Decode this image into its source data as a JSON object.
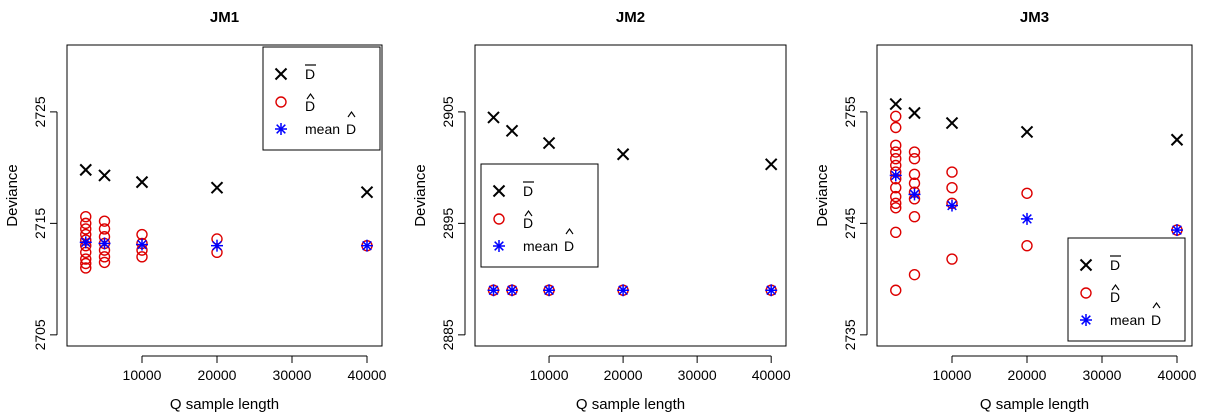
{
  "colors": {
    "dbar": "#000000",
    "dhat": "#DD0000",
    "mean_dhat": "#0000FF"
  },
  "legend": {
    "dbar": "D",
    "dhat": "D",
    "mean_dhat_prefix": "mean ",
    "mean_dhat_symbol": "D"
  },
  "chart_data": [
    {
      "type": "scatter",
      "title": "JM1",
      "xlabel": "Q sample length",
      "ylabel": "Deviance",
      "xlim": [
        0,
        42000
      ],
      "ylim": [
        2704,
        2731
      ],
      "xticks": [
        10000,
        20000,
        30000,
        40000
      ],
      "yticks": [
        2705,
        2715,
        2725
      ],
      "legend_position": "top-right",
      "grid": false,
      "series": [
        {
          "key": "dbar",
          "marker": "x",
          "points": [
            [
              2500,
              2719.8
            ],
            [
              5000,
              2719.3
            ],
            [
              10000,
              2718.7
            ],
            [
              20000,
              2718.2
            ],
            [
              40000,
              2717.8
            ]
          ]
        },
        {
          "key": "dhat",
          "marker": "o",
          "points": [
            [
              2500,
              2715.6
            ],
            [
              2500,
              2715.0
            ],
            [
              2500,
              2714.5
            ],
            [
              2500,
              2714.0
            ],
            [
              2500,
              2713.5
            ],
            [
              2500,
              2713.0
            ],
            [
              2500,
              2712.4
            ],
            [
              2500,
              2711.8
            ],
            [
              2500,
              2711.4
            ],
            [
              2500,
              2711.0
            ],
            [
              5000,
              2715.2
            ],
            [
              5000,
              2714.5
            ],
            [
              5000,
              2713.8
            ],
            [
              5000,
              2713.2
            ],
            [
              5000,
              2712.6
            ],
            [
              5000,
              2712.0
            ],
            [
              5000,
              2711.5
            ],
            [
              10000,
              2714.0
            ],
            [
              10000,
              2713.2
            ],
            [
              10000,
              2712.6
            ],
            [
              10000,
              2712.0
            ],
            [
              20000,
              2713.6
            ],
            [
              20000,
              2712.4
            ],
            [
              40000,
              2713.0
            ]
          ]
        },
        {
          "key": "mean_dhat",
          "marker": "*",
          "points": [
            [
              2500,
              2713.3
            ],
            [
              5000,
              2713.2
            ],
            [
              10000,
              2713.1
            ],
            [
              20000,
              2713.0
            ],
            [
              40000,
              2713.0
            ]
          ]
        }
      ]
    },
    {
      "type": "scatter",
      "title": "JM2",
      "xlabel": "Q sample length",
      "ylabel": "Deviance",
      "xlim": [
        0,
        42000
      ],
      "ylim": [
        2884,
        2911
      ],
      "xticks": [
        10000,
        20000,
        30000,
        40000
      ],
      "yticks": [
        2885,
        2895,
        2905
      ],
      "legend_position": "middle-left",
      "grid": false,
      "series": [
        {
          "key": "dbar",
          "marker": "x",
          "points": [
            [
              2500,
              2904.5
            ],
            [
              5000,
              2903.3
            ],
            [
              10000,
              2902.2
            ],
            [
              20000,
              2901.2
            ],
            [
              40000,
              2900.3
            ]
          ]
        },
        {
          "key": "dhat",
          "marker": "o",
          "points": [
            [
              2500,
              2889.0
            ],
            [
              5000,
              2889.0
            ],
            [
              10000,
              2889.0
            ],
            [
              20000,
              2889.0
            ],
            [
              40000,
              2889.0
            ]
          ]
        },
        {
          "key": "mean_dhat",
          "marker": "*",
          "points": [
            [
              2500,
              2889.0
            ],
            [
              5000,
              2889.0
            ],
            [
              10000,
              2889.0
            ],
            [
              20000,
              2889.0
            ],
            [
              40000,
              2889.0
            ]
          ]
        }
      ]
    },
    {
      "type": "scatter",
      "title": "JM3",
      "xlabel": "Q sample length",
      "ylabel": "Deviance",
      "xlim": [
        0,
        42000
      ],
      "ylim": [
        2734,
        2761
      ],
      "xticks": [
        10000,
        20000,
        30000,
        40000
      ],
      "yticks": [
        2735,
        2745,
        2755
      ],
      "legend_position": "bottom-right",
      "grid": false,
      "series": [
        {
          "key": "dbar",
          "marker": "x",
          "points": [
            [
              2500,
              2755.7
            ],
            [
              5000,
              2754.9
            ],
            [
              10000,
              2754.0
            ],
            [
              20000,
              2753.2
            ],
            [
              40000,
              2752.5
            ]
          ]
        },
        {
          "key": "dhat",
          "marker": "o",
          "points": [
            [
              2500,
              2754.6
            ],
            [
              2500,
              2753.6
            ],
            [
              2500,
              2752.0
            ],
            [
              2500,
              2751.4
            ],
            [
              2500,
              2750.8
            ],
            [
              2500,
              2750.2
            ],
            [
              2500,
              2749.6
            ],
            [
              2500,
              2749.0
            ],
            [
              2500,
              2748.2
            ],
            [
              2500,
              2747.4
            ],
            [
              2500,
              2746.8
            ],
            [
              2500,
              2746.4
            ],
            [
              2500,
              2744.2
            ],
            [
              2500,
              2739.0
            ],
            [
              5000,
              2751.4
            ],
            [
              5000,
              2750.8
            ],
            [
              5000,
              2749.4
            ],
            [
              5000,
              2748.6
            ],
            [
              5000,
              2747.8
            ],
            [
              5000,
              2747.2
            ],
            [
              5000,
              2745.6
            ],
            [
              5000,
              2740.4
            ],
            [
              10000,
              2749.6
            ],
            [
              10000,
              2748.2
            ],
            [
              10000,
              2746.8
            ],
            [
              10000,
              2741.8
            ],
            [
              20000,
              2747.7
            ],
            [
              20000,
              2743.0
            ],
            [
              40000,
              2744.4
            ]
          ]
        },
        {
          "key": "mean_dhat",
          "marker": "*",
          "points": [
            [
              2500,
              2749.3
            ],
            [
              5000,
              2747.6
            ],
            [
              10000,
              2746.6
            ],
            [
              20000,
              2745.4
            ],
            [
              40000,
              2744.4
            ]
          ]
        }
      ]
    }
  ]
}
